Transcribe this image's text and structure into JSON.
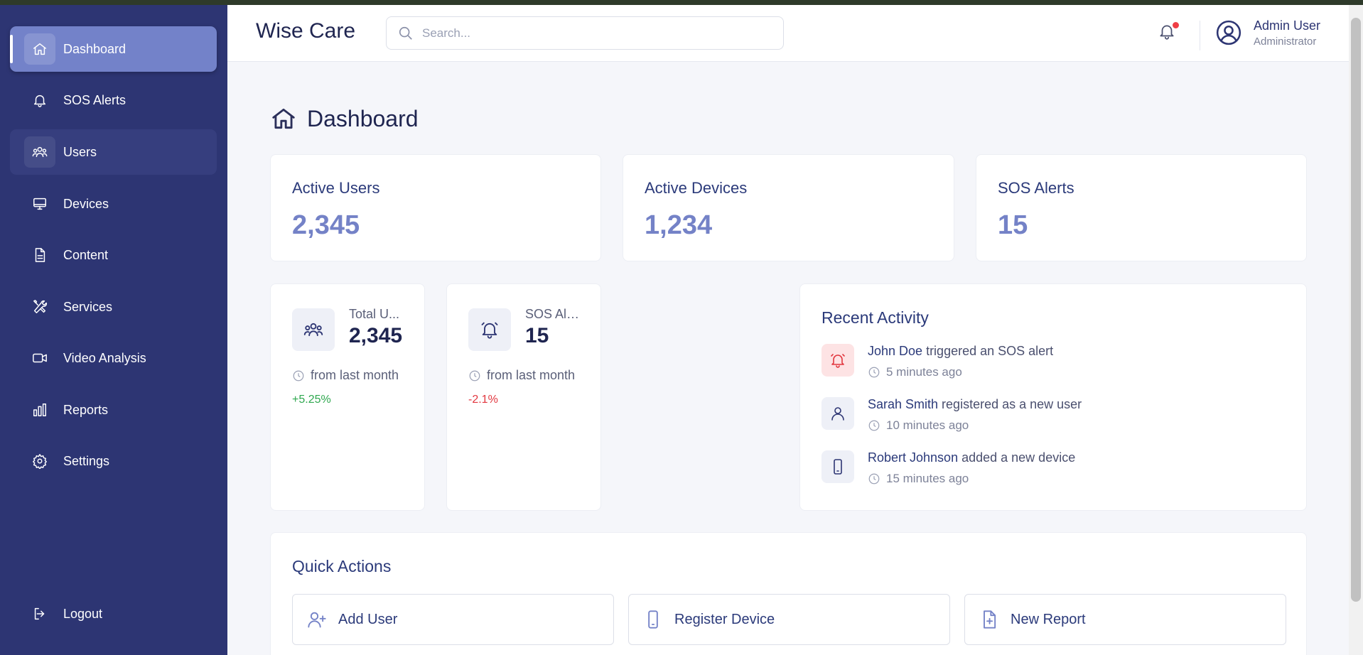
{
  "sidebar": {
    "items": [
      {
        "label": "Dashboard",
        "icon": "home-icon"
      },
      {
        "label": "SOS Alerts",
        "icon": "bell-icon"
      },
      {
        "label": "Users",
        "icon": "users-icon"
      },
      {
        "label": "Devices",
        "icon": "monitor-icon"
      },
      {
        "label": "Content",
        "icon": "document-icon"
      },
      {
        "label": "Services",
        "icon": "tools-icon"
      },
      {
        "label": "Video Analysis",
        "icon": "video-icon"
      },
      {
        "label": "Reports",
        "icon": "bar-chart-icon"
      },
      {
        "label": "Settings",
        "icon": "gear-icon"
      }
    ],
    "logout": {
      "label": "Logout",
      "icon": "logout-icon"
    }
  },
  "header": {
    "brand": "Wise Care",
    "search_placeholder": "Search...",
    "user_name": "Admin User",
    "user_role": "Administrator"
  },
  "main": {
    "title": "Dashboard",
    "stats": [
      {
        "label": "Active Users",
        "value": "2,345"
      },
      {
        "label": "Active Devices",
        "value": "1,234"
      },
      {
        "label": "SOS Alerts",
        "value": "15"
      }
    ],
    "mini_stats": [
      {
        "title": "Total U...",
        "value": "2,345",
        "from": "from last month",
        "change": "+5.25%"
      },
      {
        "title": "SOS Ale...",
        "value": "15",
        "from": "from last month",
        "change": "-2.1%"
      }
    ],
    "recent_activity": {
      "title": "Recent Activity",
      "items": [
        {
          "who": "John Doe",
          "action": " triggered an SOS alert",
          "time": "5 minutes ago"
        },
        {
          "who": "Sarah Smith",
          "action": " registered as a new user",
          "time": "10 minutes ago"
        },
        {
          "who": "Robert Johnson",
          "action": " added a new device",
          "time": "15 minutes ago"
        }
      ]
    },
    "quick_actions": {
      "title": "Quick Actions",
      "buttons": [
        {
          "label": "Add User"
        },
        {
          "label": "Register Device"
        },
        {
          "label": "New Report"
        }
      ]
    }
  },
  "colors": {
    "sidebar_bg": "#2d3573",
    "active_item": "#7382c9",
    "accent_value": "#7482c7",
    "positive": "#2fa84f",
    "negative": "#e2373f",
    "notification_dot": "#ef3e45"
  }
}
